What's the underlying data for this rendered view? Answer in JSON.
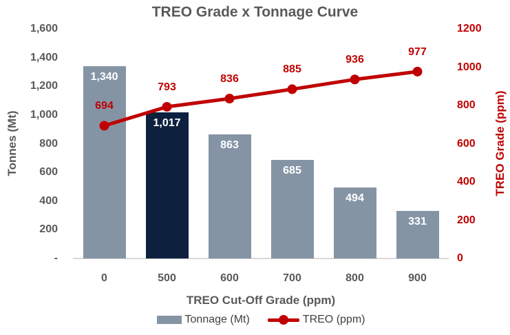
{
  "title": "TREO Grade x Tonnage Curve",
  "colors": {
    "background": "#ffffff",
    "title_text": "#595959",
    "axis_text": "#595959",
    "red": "#c00000",
    "legend_text": "#404040",
    "axis_line": "#d9d9d9",
    "bar": "#8594a5",
    "bar_highlight": "#0d213e",
    "bar_label": "#ffffff"
  },
  "chart_data": {
    "type": "combo bar+line",
    "title": "TREO Grade x Tonnage Curve",
    "categories": [
      "0",
      "500",
      "600",
      "700",
      "800",
      "900"
    ],
    "xlabel": "TREO Cut-Off Grade (ppm)",
    "ylabel_left": "Tonnes (Mt)",
    "ylabel_right": "TREO Grade (ppm)",
    "ylim_left": [
      0,
      1600
    ],
    "ylim_right": [
      0,
      1200
    ],
    "left_ticks": [
      "1,600",
      "1,400",
      "1,200",
      "1,000",
      "800",
      "600",
      "400",
      "200",
      "-"
    ],
    "right_ticks": [
      "1200",
      "1000",
      "800",
      "600",
      "400",
      "200",
      "0"
    ],
    "grid": false,
    "legend_position": "bottom",
    "series": [
      {
        "name": "Tonnage (Mt)",
        "type": "bar",
        "axis": "left",
        "values": [
          1340,
          1017,
          863,
          685,
          494,
          331
        ],
        "labels": [
          "1,340",
          "1,017",
          "863",
          "685",
          "494",
          "331"
        ],
        "highlight_index": 1
      },
      {
        "name": "TREO (ppm)",
        "type": "line",
        "axis": "right",
        "values": [
          694,
          793,
          836,
          885,
          936,
          977
        ],
        "labels": [
          "694",
          "793",
          "836",
          "885",
          "936",
          "977"
        ]
      }
    ]
  }
}
